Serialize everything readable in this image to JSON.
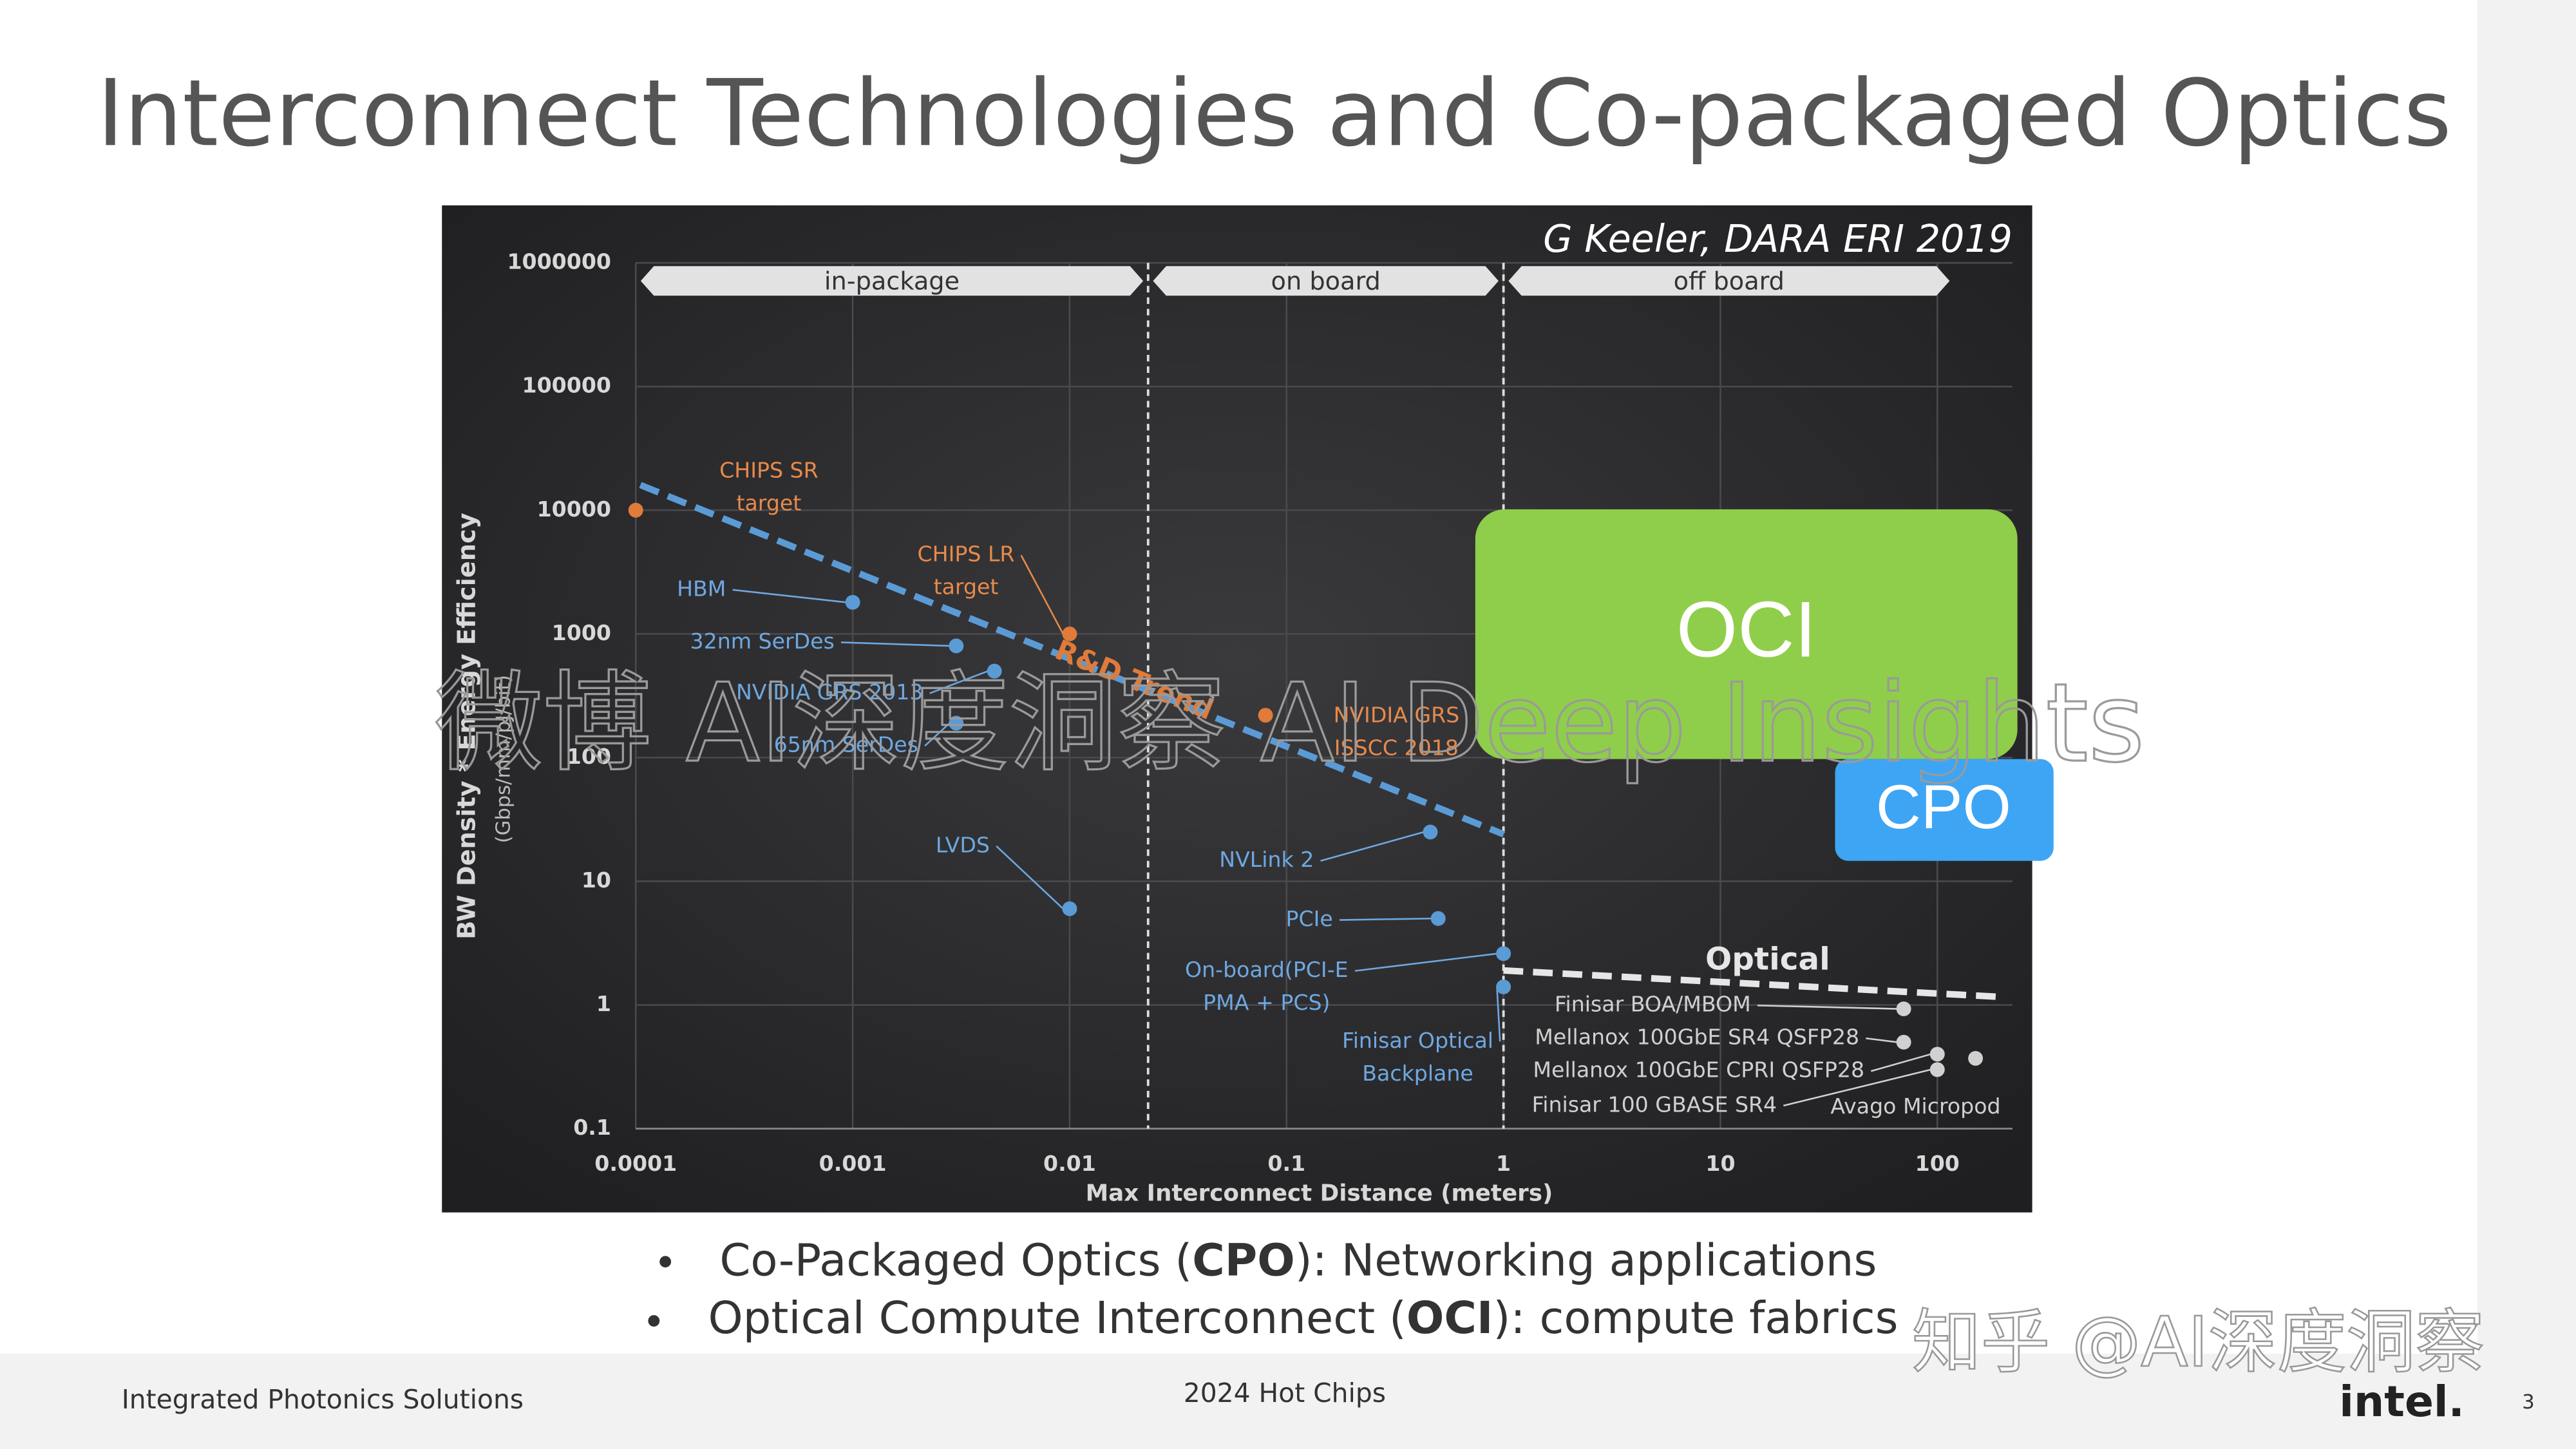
{
  "slide": {
    "title": "Interconnect Technologies and Co-packaged Optics",
    "bullets": [
      [
        "Co-Packaged Optics (",
        "CPO",
        "): Networking applications"
      ],
      [
        "Optical Compute Interconnect (",
        "OCI",
        "): compute fabrics"
      ]
    ],
    "footer": {
      "left": "Integrated Photonics Solutions",
      "center": "2024 Hot Chips",
      "logo": "intel.",
      "page": "3"
    },
    "overlays": {
      "oci": "OCI",
      "cpo": "CPO"
    },
    "watermarks": [
      "微博 AI深度洞察 AI Deep Insights",
      "知乎 @AI深度洞察"
    ]
  },
  "chart_data": {
    "type": "scatter",
    "source": "G Keeler, DARA ERI 2019",
    "x_label": "Max Interconnect Distance (meters)",
    "y_label": "BW Density * Energy Efficiency",
    "y_unit": "(Gbps/mm/pJ/bit)",
    "log_x": true,
    "log_y": true,
    "grid": true,
    "xlim": [
      0.0001,
      200
    ],
    "ylim": [
      0.1,
      1000000
    ],
    "xticks": [
      0.0001,
      0.001,
      0.01,
      0.1,
      1,
      10,
      100
    ],
    "yticks": [
      0.1,
      1,
      10,
      100,
      1000,
      10000,
      100000,
      1000000
    ],
    "regions": [
      {
        "label": "in-package",
        "x": [
          0.0001,
          0.023
        ]
      },
      {
        "label": "on board",
        "x": [
          0.023,
          1
        ]
      },
      {
        "label": "off board",
        "x": [
          1,
          120
        ]
      }
    ],
    "series": [
      {
        "color": "#5b9bd5",
        "label_color": "#6fa8e0",
        "x": [
          0.001,
          0.003,
          0.0045,
          0.003,
          0.01,
          0.46,
          0.5,
          1,
          1
        ],
        "values": [
          1800,
          800,
          500,
          190,
          6,
          25,
          5,
          2.6,
          1.4
        ],
        "labels": [
          [
            "HBM"
          ],
          [
            "32nm SerDes"
          ],
          [
            "NVIDIA GRS 2013"
          ],
          [
            "65nm SerDes"
          ],
          [
            "LVDS"
          ],
          [
            "NVLink 2"
          ],
          [
            "PCIe"
          ],
          [
            "On-board(PCI-E",
            "PMA + PCS)"
          ],
          [
            "Finisar Optical",
            "Backplane"
          ]
        ]
      },
      {
        "color": "#e07b39",
        "label_color": "#e88a4a",
        "x": [
          0.0001,
          0.01,
          0.08
        ],
        "values": [
          10000,
          1000,
          220
        ],
        "labels": [
          [
            "CHIPS SR",
            "target"
          ],
          [
            "CHIPS LR",
            "target"
          ],
          [
            "NVIDIA GRS",
            "ISSCC 2018"
          ]
        ]
      },
      {
        "color": "#d0d0d0",
        "label_color": "#d0d0d0",
        "x": [
          70,
          70,
          100,
          100,
          150
        ],
        "values": [
          0.93,
          0.5,
          0.4,
          0.3,
          0.37
        ],
        "labels": [
          [
            "Finisar BOA/MBOM"
          ],
          [
            "Mellanox 100GbE SR4 QSFP28"
          ],
          [
            "Mellanox 100GbE CPRI QSFP28"
          ],
          [
            "Finisar 100 GBASE SR4"
          ],
          [
            "Avago Micropod"
          ]
        ]
      }
    ],
    "trends": [
      {
        "name": "R&D Trend",
        "color": "#5b9bd5",
        "x": [
          0.000105,
          1
        ],
        "values": [
          16000,
          24
        ]
      },
      {
        "name": "Optical",
        "color": "#e6e6e6",
        "x": [
          1,
          200
        ],
        "values": [
          1.9,
          1.16
        ]
      }
    ]
  }
}
